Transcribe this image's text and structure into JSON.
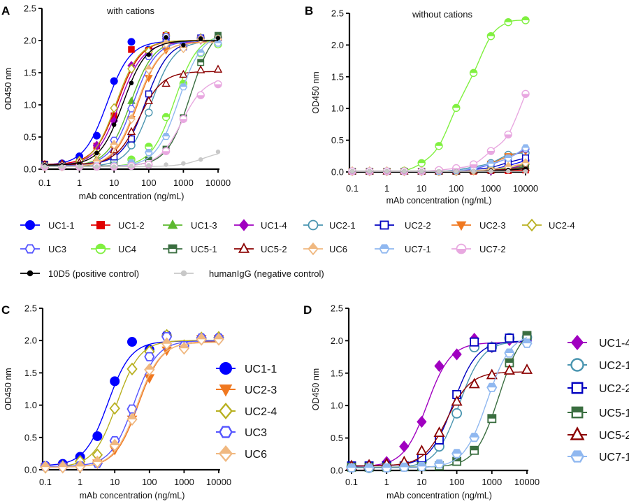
{
  "chart_data": [
    {
      "panel": "A",
      "type": "line",
      "title": "with cations",
      "xlabel": "mAb concentration (ng/mL)",
      "ylabel": "OD450 nm",
      "x_scale": "log",
      "xlim": [
        0.1,
        10000
      ],
      "ylim": [
        0,
        2.5
      ],
      "x_ticks": [
        "0.1",
        "1",
        "10",
        "100",
        "1000",
        "10000"
      ],
      "y_ticks": [
        "0.0",
        "0.5",
        "1.0",
        "1.5",
        "2.0",
        "2.5"
      ],
      "grid": false,
      "legend": "below",
      "x": [
        0.1,
        0.316,
        1,
        3.16,
        10,
        31.6,
        100,
        316,
        1000,
        3162,
        10000
      ],
      "series": [
        {
          "name": "UC1-1",
          "color": "#0000ff",
          "marker": "circle",
          "fill": "filled",
          "values": [
            0.06,
            0.09,
            0.2,
            0.52,
            1.37,
            1.98,
            1.86,
            2.08,
            1.91,
            2.03,
            2.04
          ]
        },
        {
          "name": "UC1-2",
          "color": "#e00000",
          "marker": "square",
          "fill": "filled",
          "values": [
            0.08,
            0.07,
            0.11,
            0.36,
            0.83,
            1.86,
            1.85,
            2.08,
            1.93,
            2.04,
            2.04
          ]
        },
        {
          "name": "UC1-3",
          "color": "#5cb82e",
          "marker": "triangle",
          "fill": "filled",
          "values": [
            0.05,
            0.05,
            0.07,
            0.16,
            0.42,
            1.06,
            1.77,
            2.07,
            1.93,
            2.04,
            2.05
          ]
        },
        {
          "name": "UC1-4",
          "color": "#a000c0",
          "marker": "diamond",
          "fill": "filled",
          "values": [
            0.06,
            0.08,
            0.13,
            0.37,
            0.75,
            1.61,
            1.79,
            2.03,
            1.9,
            2.01,
            2.01
          ]
        },
        {
          "name": "UC2-1",
          "color": "#4a95b0",
          "marker": "circle",
          "fill": "open",
          "values": [
            0.05,
            0.04,
            0.05,
            0.06,
            0.14,
            0.37,
            0.88,
            1.9,
            1.9,
            2.04,
            2.05
          ]
        },
        {
          "name": "UC2-2",
          "color": "#0000c0",
          "marker": "square",
          "fill": "open",
          "values": [
            0.07,
            0.07,
            0.07,
            0.07,
            0.19,
            0.47,
            1.17,
            1.98,
            1.9,
            2.04,
            2.05
          ]
        },
        {
          "name": "UC2-3",
          "color": "#f07820",
          "marker": "triangle-down",
          "fill": "filled",
          "values": [
            0.04,
            0.04,
            0.05,
            0.1,
            0.31,
            0.78,
            1.42,
            1.85,
            1.89,
            2.03,
            2.03
          ]
        },
        {
          "name": "UC2-4",
          "color": "#b8b020",
          "marker": "diamond",
          "fill": "open",
          "values": [
            0.04,
            0.05,
            0.13,
            0.23,
            0.95,
            1.56,
            1.83,
            2.08,
            1.92,
            2.04,
            2.05
          ]
        },
        {
          "name": "UC3",
          "color": "#5555ff",
          "marker": "hexagon",
          "fill": "open",
          "values": [
            0.05,
            0.05,
            0.06,
            0.1,
            0.45,
            0.94,
            1.75,
            2.06,
            1.92,
            2.04,
            2.04
          ]
        },
        {
          "name": "UC4",
          "color": "#80f040",
          "marker": "circle-half-top",
          "fill": "half",
          "values": [
            0.04,
            0.04,
            0.04,
            0.04,
            0.06,
            0.15,
            0.35,
            0.81,
            1.33,
            1.8,
            1.94
          ]
        },
        {
          "name": "UC5-1",
          "color": "#3a6e40",
          "marker": "square-half-top",
          "fill": "half",
          "values": [
            0.05,
            0.05,
            0.05,
            0.06,
            0.06,
            0.07,
            0.14,
            0.31,
            0.8,
            1.66,
            2.08
          ]
        },
        {
          "name": "UC5-2",
          "color": "#8b0000",
          "marker": "triangle",
          "fill": "open",
          "values": [
            0.07,
            0.08,
            0.1,
            0.13,
            0.3,
            0.58,
            1.06,
            1.33,
            1.47,
            1.54,
            1.55
          ]
        },
        {
          "name": "UC6",
          "color": "#f0b880",
          "marker": "diamond-half",
          "fill": "half",
          "values": [
            0.04,
            0.04,
            0.05,
            0.12,
            0.38,
            0.78,
            1.55,
            1.95,
            1.88,
            2.02,
            2.02
          ]
        },
        {
          "name": "UC7-1",
          "color": "#90b8f0",
          "marker": "hexagon-half",
          "fill": "half",
          "values": [
            0.04,
            0.04,
            0.04,
            0.05,
            0.06,
            0.1,
            0.26,
            0.51,
            1.28,
            1.81,
            1.96
          ]
        },
        {
          "name": "UC7-2",
          "color": "#e8a8e0",
          "marker": "circle-half-bottom",
          "fill": "half",
          "values": [
            0.04,
            0.04,
            0.04,
            0.04,
            0.04,
            0.05,
            0.07,
            0.28,
            0.78,
            1.15,
            1.32
          ]
        },
        {
          "name": "10D5 (positive control)",
          "color": "#000000",
          "marker": "dot",
          "fill": "filled",
          "values": [
            0.06,
            0.06,
            0.08,
            0.25,
            0.69,
            1.34,
            1.78,
            2.05,
            1.93,
            2.03,
            2.04
          ]
        },
        {
          "name": "humanIgG (negative control)",
          "color": "#c8c8c8",
          "marker": "dot",
          "fill": "filled",
          "values": [
            0.04,
            0.04,
            0.04,
            0.04,
            0.04,
            0.05,
            0.06,
            0.07,
            0.09,
            0.15,
            0.27
          ]
        }
      ]
    },
    {
      "panel": "B",
      "type": "line",
      "title": "without cations",
      "xlabel": "mAb concentration (ng/mL)",
      "ylabel": "OD450 nm",
      "x_scale": "log",
      "xlim": [
        0.1,
        10000
      ],
      "ylim": [
        0,
        2.5
      ],
      "x_ticks": [
        "0.1",
        "1",
        "10",
        "100",
        "1000",
        "10000"
      ],
      "y_ticks": [
        "0.0",
        "0.5",
        "1.0",
        "1.5",
        "2.0",
        "2.5"
      ],
      "grid": false,
      "x": [
        0.1,
        0.316,
        1,
        3.16,
        10,
        31.6,
        100,
        316,
        1000,
        3162,
        10000
      ],
      "series": [
        {
          "name": "UC1-1",
          "color": "#0000ff",
          "marker": "circle",
          "fill": "filled",
          "values": [
            0.01,
            0.01,
            0.01,
            0.01,
            0.01,
            0.01,
            0.01,
            0.02,
            0.04,
            0.1,
            0.18
          ]
        },
        {
          "name": "UC1-2",
          "color": "#e00000",
          "marker": "square",
          "fill": "filled",
          "values": [
            0.01,
            0.01,
            0.01,
            0.01,
            0.01,
            0.01,
            0.01,
            0.01,
            0.02,
            0.02,
            0.03
          ]
        },
        {
          "name": "UC1-3",
          "color": "#5cb82e",
          "marker": "triangle",
          "fill": "filled",
          "values": [
            0.01,
            0.01,
            0.01,
            0.01,
            0.01,
            0.01,
            0.01,
            0.02,
            0.03,
            0.06,
            0.1
          ]
        },
        {
          "name": "UC1-4",
          "color": "#a000c0",
          "marker": "diamond",
          "fill": "filled",
          "values": [
            0.01,
            0.01,
            0.01,
            0.01,
            0.01,
            0.01,
            0.01,
            0.02,
            0.02,
            0.05,
            0.12
          ]
        },
        {
          "name": "UC2-1",
          "color": "#4a95b0",
          "marker": "circle",
          "fill": "open",
          "values": [
            0.01,
            0.01,
            0.01,
            0.01,
            0.01,
            0.01,
            0.03,
            0.08,
            0.14,
            0.27,
            0.3
          ]
        },
        {
          "name": "UC2-2",
          "color": "#0000c0",
          "marker": "square",
          "fill": "open",
          "values": [
            0.01,
            0.01,
            0.01,
            0.01,
            0.01,
            0.01,
            0.02,
            0.04,
            0.07,
            0.15,
            0.22
          ]
        },
        {
          "name": "UC2-3",
          "color": "#f07820",
          "marker": "triangle-down",
          "fill": "filled",
          "values": [
            0.01,
            0.01,
            0.01,
            0.01,
            0.01,
            0.01,
            0.02,
            0.05,
            0.13,
            0.25,
            0.33
          ]
        },
        {
          "name": "UC2-4",
          "color": "#b8b020",
          "marker": "diamond",
          "fill": "open",
          "values": [
            0.01,
            0.01,
            0.01,
            0.01,
            0.01,
            0.01,
            0.01,
            0.02,
            0.04,
            0.08,
            0.12
          ]
        },
        {
          "name": "UC3",
          "color": "#5555ff",
          "marker": "hexagon",
          "fill": "open",
          "values": [
            0.01,
            0.01,
            0.01,
            0.01,
            0.01,
            0.01,
            0.02,
            0.05,
            0.12,
            0.22,
            0.36
          ]
        },
        {
          "name": "UC4",
          "color": "#80f040",
          "marker": "circle-half-top",
          "fill": "half",
          "values": [
            0.01,
            0.01,
            0.01,
            0.02,
            0.14,
            0.41,
            1.01,
            1.56,
            2.14,
            2.36,
            2.39
          ]
        },
        {
          "name": "UC5-1",
          "color": "#3a6e40",
          "marker": "square-half-top",
          "fill": "half",
          "values": [
            0.01,
            0.01,
            0.01,
            0.01,
            0.01,
            0.01,
            0.01,
            0.02,
            0.03,
            0.05,
            0.08
          ]
        },
        {
          "name": "UC5-2",
          "color": "#8b0000",
          "marker": "triangle",
          "fill": "open",
          "values": [
            0.01,
            0.01,
            0.01,
            0.01,
            0.01,
            0.01,
            0.01,
            0.02,
            0.03,
            0.04,
            0.06
          ]
        },
        {
          "name": "UC6",
          "color": "#f0b880",
          "marker": "diamond-half",
          "fill": "half",
          "values": [
            0.01,
            0.01,
            0.01,
            0.01,
            0.01,
            0.01,
            0.01,
            0.02,
            0.04,
            0.08,
            0.14
          ]
        },
        {
          "name": "UC7-1",
          "color": "#90b8f0",
          "marker": "hexagon-half",
          "fill": "half",
          "values": [
            0.01,
            0.01,
            0.01,
            0.01,
            0.01,
            0.01,
            0.02,
            0.06,
            0.13,
            0.22,
            0.38
          ]
        },
        {
          "name": "UC7-2",
          "color": "#e8a8e0",
          "marker": "circle-half-bottom",
          "fill": "half",
          "values": [
            0.01,
            0.01,
            0.01,
            0.01,
            0.01,
            0.03,
            0.06,
            0.12,
            0.33,
            0.59,
            1.23
          ]
        },
        {
          "name": "10D5 (positive control)",
          "color": "#000000",
          "marker": "dot",
          "fill": "filled",
          "values": [
            0.01,
            0.01,
            0.01,
            0.01,
            0.01,
            0.01,
            0.01,
            0.01,
            0.02,
            0.03,
            0.05
          ]
        },
        {
          "name": "humanIgG (negative control)",
          "color": "#c8c8c8",
          "marker": "dot",
          "fill": "filled",
          "values": [
            0.01,
            0.01,
            0.01,
            0.01,
            0.01,
            0.01,
            0.01,
            0.01,
            0.01,
            0.01,
            0.01
          ]
        }
      ]
    },
    {
      "panel": "C",
      "type": "line",
      "title": "",
      "xlabel": "mAb concentration (ng/mL)",
      "ylabel": "OD450 nm",
      "x_scale": "log",
      "xlim": [
        0.1,
        10000
      ],
      "ylim": [
        0,
        2.5
      ],
      "x_ticks": [
        "0.1",
        "1",
        "10",
        "100",
        "1000",
        "10000"
      ],
      "y_ticks": [
        "0.0",
        "0.5",
        "1.0",
        "1.5",
        "2.0",
        "2.5"
      ],
      "grid": false,
      "legend": "right",
      "x": [
        0.1,
        0.316,
        1,
        3.16,
        10,
        31.6,
        100,
        316,
        1000,
        3162,
        10000
      ],
      "series": [
        {
          "name": "UC1-1",
          "color": "#0000ff",
          "marker": "circle",
          "fill": "filled",
          "values": [
            0.06,
            0.09,
            0.2,
            0.52,
            1.37,
            1.98,
            1.86,
            2.08,
            1.91,
            2.03,
            2.04
          ]
        },
        {
          "name": "UC2-3",
          "color": "#f07820",
          "marker": "triangle-down",
          "fill": "filled",
          "values": [
            0.04,
            0.04,
            0.05,
            0.1,
            0.31,
            0.78,
            1.42,
            1.85,
            1.89,
            2.03,
            2.03
          ]
        },
        {
          "name": "UC2-4",
          "color": "#b8b020",
          "marker": "diamond",
          "fill": "open",
          "values": [
            0.04,
            0.05,
            0.13,
            0.23,
            0.95,
            1.56,
            1.83,
            2.08,
            1.92,
            2.04,
            2.05
          ]
        },
        {
          "name": "UC3",
          "color": "#5555ff",
          "marker": "hexagon",
          "fill": "open",
          "values": [
            0.05,
            0.05,
            0.06,
            0.1,
            0.45,
            0.94,
            1.75,
            2.06,
            1.92,
            2.04,
            2.04
          ]
        },
        {
          "name": "UC6",
          "color": "#f0b880",
          "marker": "diamond-half",
          "fill": "half",
          "values": [
            0.04,
            0.04,
            0.05,
            0.12,
            0.38,
            0.78,
            1.55,
            1.95,
            1.88,
            2.02,
            2.02
          ]
        }
      ]
    },
    {
      "panel": "D",
      "type": "line",
      "title": "",
      "xlabel": "mAb concentration (ng/mL)",
      "ylabel": "OD450 nm",
      "x_scale": "log",
      "xlim": [
        0.1,
        10000
      ],
      "ylim": [
        0,
        2.5
      ],
      "x_ticks": [
        "0.1",
        "1",
        "10",
        "100",
        "1000",
        "10000"
      ],
      "y_ticks": [
        "0.0",
        "0.5",
        "1.0",
        "1.5",
        "2.0",
        "2.5"
      ],
      "grid": false,
      "legend": "right",
      "x": [
        0.1,
        0.316,
        1,
        3.16,
        10,
        31.6,
        100,
        316,
        1000,
        3162,
        10000
      ],
      "series": [
        {
          "name": "UC1-4",
          "color": "#a000c0",
          "marker": "diamond",
          "fill": "filled",
          "values": [
            0.06,
            0.08,
            0.13,
            0.37,
            0.75,
            1.61,
            1.79,
            2.03,
            1.9,
            2.01,
            2.01
          ]
        },
        {
          "name": "UC2-1",
          "color": "#4a95b0",
          "marker": "circle",
          "fill": "open",
          "values": [
            0.05,
            0.04,
            0.05,
            0.06,
            0.14,
            0.37,
            0.88,
            1.9,
            1.9,
            2.04,
            2.05
          ]
        },
        {
          "name": "UC2-2",
          "color": "#0000c0",
          "marker": "square",
          "fill": "open",
          "values": [
            0.07,
            0.07,
            0.07,
            0.07,
            0.19,
            0.47,
            1.17,
            1.98,
            1.9,
            2.04,
            2.05
          ]
        },
        {
          "name": "UC5-1",
          "color": "#3a6e40",
          "marker": "square-half-top",
          "fill": "half",
          "values": [
            0.05,
            0.05,
            0.05,
            0.06,
            0.06,
            0.07,
            0.14,
            0.31,
            0.8,
            1.66,
            2.08
          ]
        },
        {
          "name": "UC5-2",
          "color": "#8b0000",
          "marker": "triangle",
          "fill": "open",
          "values": [
            0.07,
            0.08,
            0.1,
            0.13,
            0.3,
            0.58,
            1.06,
            1.33,
            1.47,
            1.54,
            1.55
          ]
        },
        {
          "name": "UC7-1",
          "color": "#90b8f0",
          "marker": "hexagon-half",
          "fill": "half",
          "values": [
            0.04,
            0.04,
            0.04,
            0.05,
            0.06,
            0.1,
            0.26,
            0.51,
            1.28,
            1.81,
            1.96
          ]
        }
      ]
    }
  ]
}
